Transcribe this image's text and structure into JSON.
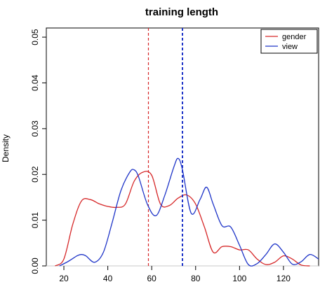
{
  "chart_data": {
    "type": "line",
    "title": "training length",
    "xlabel": "",
    "ylabel": "Density",
    "xlim": [
      12,
      136
    ],
    "ylim": [
      0,
      0.052
    ],
    "xticks": [
      20,
      40,
      60,
      80,
      100,
      120
    ],
    "yticks": [
      0.0,
      0.01,
      0.02,
      0.03,
      0.04,
      0.05
    ],
    "ytick_labels": [
      "0.00",
      "0.01",
      "0.02",
      "0.03",
      "0.04",
      "0.05"
    ],
    "legend": {
      "position": "top-right"
    },
    "series": [
      {
        "name": "gender",
        "color": "#d62728",
        "mean": 58.5,
        "x": [
          16,
          20,
          24,
          28,
          32,
          36,
          40,
          44,
          48,
          52,
          56,
          60,
          64,
          68,
          72,
          76,
          80,
          84,
          88,
          92,
          96,
          100,
          104,
          108,
          112,
          116,
          120,
          124,
          128,
          132
        ],
        "y": [
          0.0,
          0.0015,
          0.009,
          0.0142,
          0.0145,
          0.0136,
          0.013,
          0.0128,
          0.0135,
          0.0185,
          0.0205,
          0.0198,
          0.0135,
          0.0132,
          0.0148,
          0.0155,
          0.0135,
          0.0085,
          0.003,
          0.0042,
          0.0042,
          0.0035,
          0.0035,
          0.0015,
          0.0003,
          0.0008,
          0.0022,
          0.0015,
          0.0002,
          0.0
        ]
      },
      {
        "name": "view",
        "color": "#1f35c8",
        "mean": 74,
        "x": [
          18,
          22,
          26,
          28,
          30,
          34,
          38,
          42,
          46,
          50,
          52,
          54,
          58,
          62,
          66,
          70,
          72,
          74,
          78,
          82,
          85,
          88,
          92,
          96,
          100,
          104,
          108,
          112,
          116,
          120,
          124,
          128,
          132,
          136
        ],
        "y": [
          0.0,
          0.001,
          0.0022,
          0.0025,
          0.0022,
          0.0008,
          0.003,
          0.0095,
          0.0165,
          0.0205,
          0.021,
          0.0195,
          0.0135,
          0.011,
          0.0155,
          0.0215,
          0.0235,
          0.021,
          0.0115,
          0.0145,
          0.0172,
          0.0135,
          0.0088,
          0.0085,
          0.0045,
          0.0003,
          0.0005,
          0.0025,
          0.0048,
          0.003,
          0.0004,
          0.0009,
          0.0025,
          0.0015
        ]
      }
    ]
  }
}
